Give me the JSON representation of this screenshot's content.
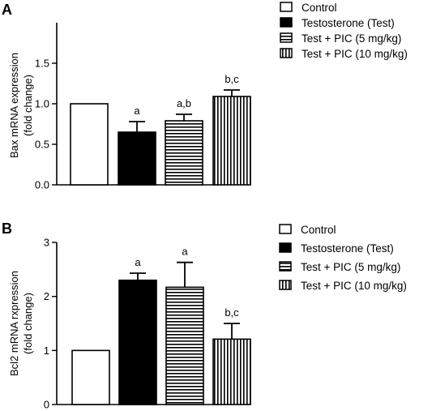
{
  "chart_data": [
    {
      "panel": "A",
      "type": "bar",
      "ylabel": [
        "Bax mRNA expression",
        "(fold change)"
      ],
      "ylim": [
        0,
        2.0
      ],
      "yticks": [
        "0.0",
        "0.5",
        "1.0",
        "1.5"
      ],
      "ytick_values": [
        0,
        0.5,
        1.0,
        1.5
      ],
      "categories": [
        "Control",
        "Testosterone (Test)",
        "Test + PIC (5 mg/kg)",
        "Test + PIC (10 mg/kg)"
      ],
      "values": [
        1.0,
        0.65,
        0.79,
        1.09
      ],
      "errors": [
        0,
        0.13,
        0.08,
        0.08
      ],
      "labels": [
        "",
        "a",
        "a,b",
        "b,c"
      ],
      "grid": false,
      "legend_position": "top-right"
    },
    {
      "panel": "B",
      "type": "bar",
      "ylabel": [
        "Bcl2 mRNA rxpression",
        "(fold change)"
      ],
      "ylim": [
        0,
        3.0
      ],
      "yticks": [
        "0",
        "1",
        "2",
        "3"
      ],
      "ytick_values": [
        0,
        1,
        2,
        3
      ],
      "categories": [
        "Control",
        "Testosterone (Test)",
        "Test + PIC (5 mg/kg)",
        "Test + PIC (10 mg/kg)"
      ],
      "values": [
        1.0,
        2.3,
        2.17,
        1.21
      ],
      "errors": [
        0,
        0.13,
        0.46,
        0.29
      ],
      "labels": [
        "",
        "a",
        "a",
        "b,c"
      ],
      "grid": false,
      "legend_position": "top-right"
    }
  ],
  "series_styles": [
    {
      "fill": "white",
      "color": "#000000"
    },
    {
      "fill": "solid",
      "color": "#000000"
    },
    {
      "fill": "horizontal-stripes",
      "color": "#000000"
    },
    {
      "fill": "vertical-stripes",
      "color": "#000000"
    }
  ]
}
